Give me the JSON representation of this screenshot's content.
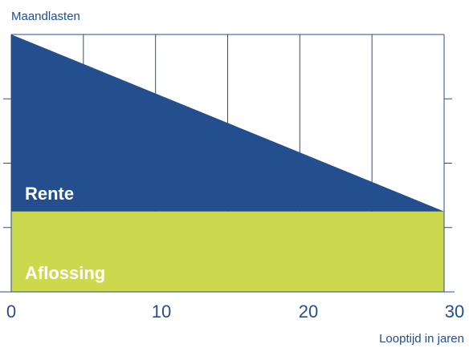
{
  "chart_data": {
    "type": "area",
    "ylabel": "Maandlasten",
    "xlabel": "Looptijd in jaren",
    "xlim": [
      0,
      30
    ],
    "ylim": [
      0,
      4
    ],
    "x_ticks": [
      "0",
      "10",
      "20",
      "30"
    ],
    "vertical_gridlines_at_years": [
      5,
      10,
      15,
      20,
      25
    ],
    "y_tick_marks": [
      1,
      2,
      3
    ],
    "grid": true,
    "legend": "none",
    "series": [
      {
        "name": "Aflossing",
        "x": [
          0,
          30
        ],
        "values": [
          1.25,
          1.25
        ],
        "color": "#cdd94c"
      },
      {
        "name": "Rente",
        "x": [
          0,
          30
        ],
        "values": [
          2.75,
          0
        ],
        "color": "#234f8f"
      }
    ],
    "colors": {
      "axis": "#234f8f",
      "label_text": "#234f8f",
      "area_label_text": "#ffffff"
    }
  }
}
